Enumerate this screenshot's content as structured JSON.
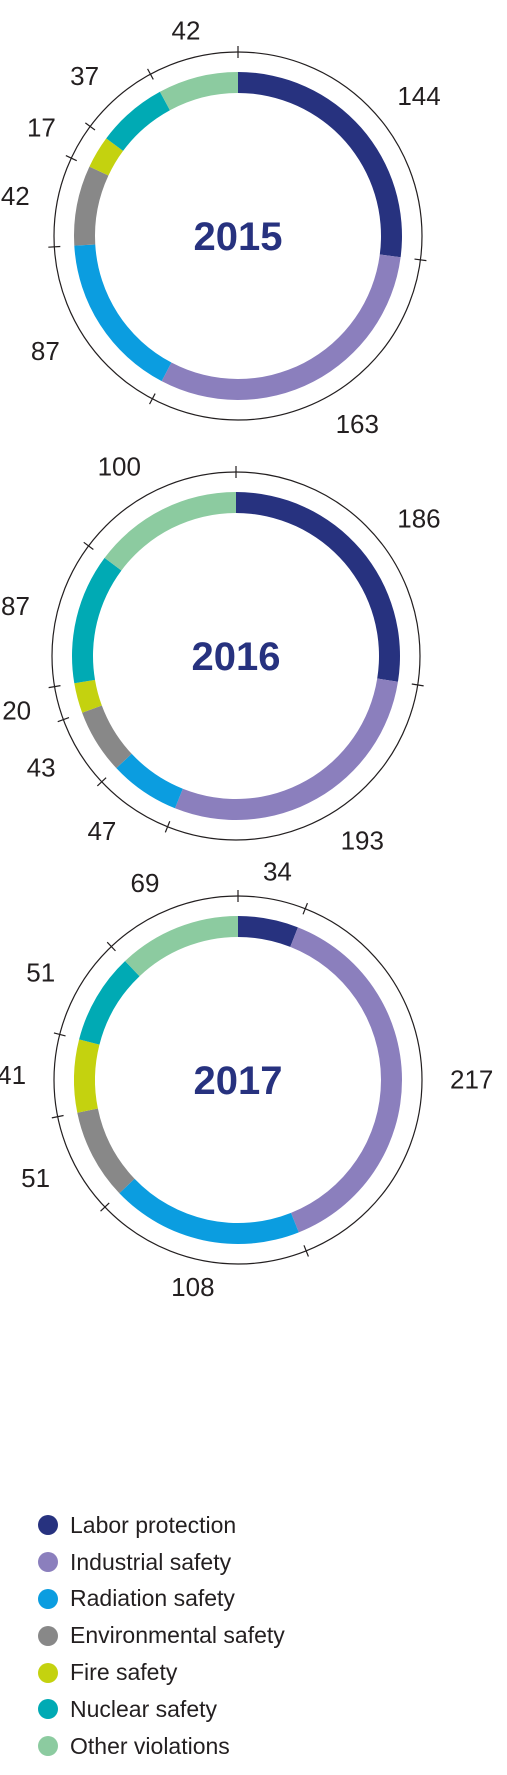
{
  "chart_data": [
    {
      "type": "pie",
      "center_label": "2015",
      "categories": [
        "Labor protection",
        "Industrial safety",
        "Radiation safety",
        "Environmental safety",
        "Fire safety",
        "Nuclear safety",
        "Other violations"
      ],
      "values": [
        144,
        163,
        87,
        42,
        17,
        37,
        42
      ]
    },
    {
      "type": "pie",
      "center_label": "2016",
      "categories": [
        "Labor protection",
        "Industrial safety",
        "Radiation safety",
        "Environmental safety",
        "Fire safety",
        "Nuclear safety",
        "Other violations"
      ],
      "values": [
        186,
        193,
        47,
        43,
        20,
        87,
        100
      ]
    },
    {
      "type": "pie",
      "center_label": "2017",
      "categories": [
        "Labor protection",
        "Industrial safety",
        "Radiation safety",
        "Environmental safety",
        "Fire safety",
        "Nuclear safety",
        "Other violations"
      ],
      "values": [
        34,
        217,
        108,
        51,
        41,
        51,
        69
      ],
      "value_labels": [
        "34",
        "217",
        "108",
        "51",
        "41",
        "51",
        "69"
      ]
    }
  ],
  "legend": [
    {
      "label": "Labor protection",
      "color": "#27327f"
    },
    {
      "label": "Industrial safety",
      "color": "#8b7fbd"
    },
    {
      "label": "Radiation safety",
      "color": "#0b9de0"
    },
    {
      "label": "Environmental safety",
      "color": "#888888"
    },
    {
      "label": "Fire safety",
      "color": "#c4d20f"
    },
    {
      "label": "Nuclear safety",
      "color": "#00aab4"
    },
    {
      "label": "Other violations",
      "color": "#8ccba0"
    }
  ],
  "colors": {
    "year_label": "#27327f",
    "value_label": "#231f20",
    "outer_ring": "#231f20"
  }
}
